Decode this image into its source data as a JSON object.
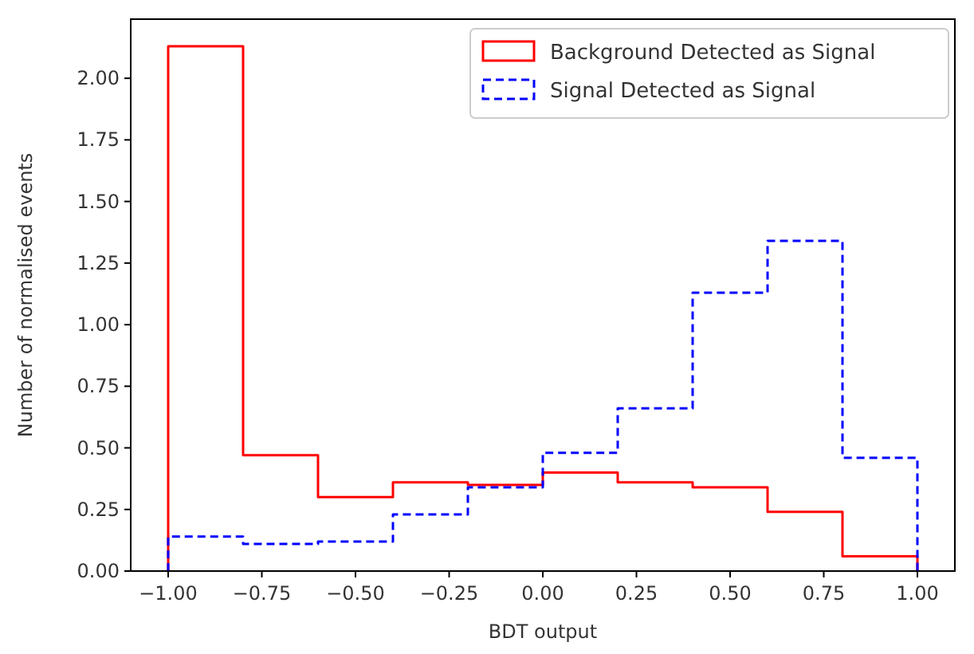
{
  "chart_data": {
    "type": "histogram",
    "xlabel": "BDT output",
    "ylabel": "Number of normalised events",
    "bins": [
      -1,
      -0.8,
      -0.6,
      -0.4,
      -0.2,
      0,
      0.2,
      0.4,
      0.6,
      0.8,
      1
    ],
    "series": [
      {
        "name": "Background Detected as Signal",
        "color": "#ff0000",
        "line_style": "solid",
        "values": [
          2.13,
          0.47,
          0.3,
          0.36,
          0.35,
          0.4,
          0.36,
          0.34,
          0.24,
          0.06
        ]
      },
      {
        "name": "Signal Detected as Signal",
        "color": "#0000ff",
        "line_style": "dashed",
        "values": [
          0.14,
          0.11,
          0.12,
          0.23,
          0.34,
          0.48,
          0.66,
          1.13,
          1.34,
          0.46
        ]
      }
    ],
    "xlim": [
      -1.1,
      1.1
    ],
    "ylim": [
      0,
      2.24
    ],
    "xticks": [
      {
        "value": -1,
        "label": "−1.00"
      },
      {
        "value": -0.75,
        "label": "−0.75"
      },
      {
        "value": -0.5,
        "label": "−0.50"
      },
      {
        "value": -0.25,
        "label": "−0.25"
      },
      {
        "value": 0,
        "label": "0.00"
      },
      {
        "value": 0.25,
        "label": "0.25"
      },
      {
        "value": 0.5,
        "label": "0.50"
      },
      {
        "value": 0.75,
        "label": "0.75"
      },
      {
        "value": 1,
        "label": "1.00"
      }
    ],
    "yticks": [
      {
        "value": 0,
        "label": "0.00"
      },
      {
        "value": 0.25,
        "label": "0.25"
      },
      {
        "value": 0.5,
        "label": "0.50"
      },
      {
        "value": 0.75,
        "label": "0.75"
      },
      {
        "value": 1,
        "label": "1.00"
      },
      {
        "value": 1.25,
        "label": "1.25"
      },
      {
        "value": 1.5,
        "label": "1.50"
      },
      {
        "value": 1.75,
        "label": "1.75"
      },
      {
        "value": 2,
        "label": "2.00"
      }
    ],
    "legend": "top right",
    "grid": false
  }
}
